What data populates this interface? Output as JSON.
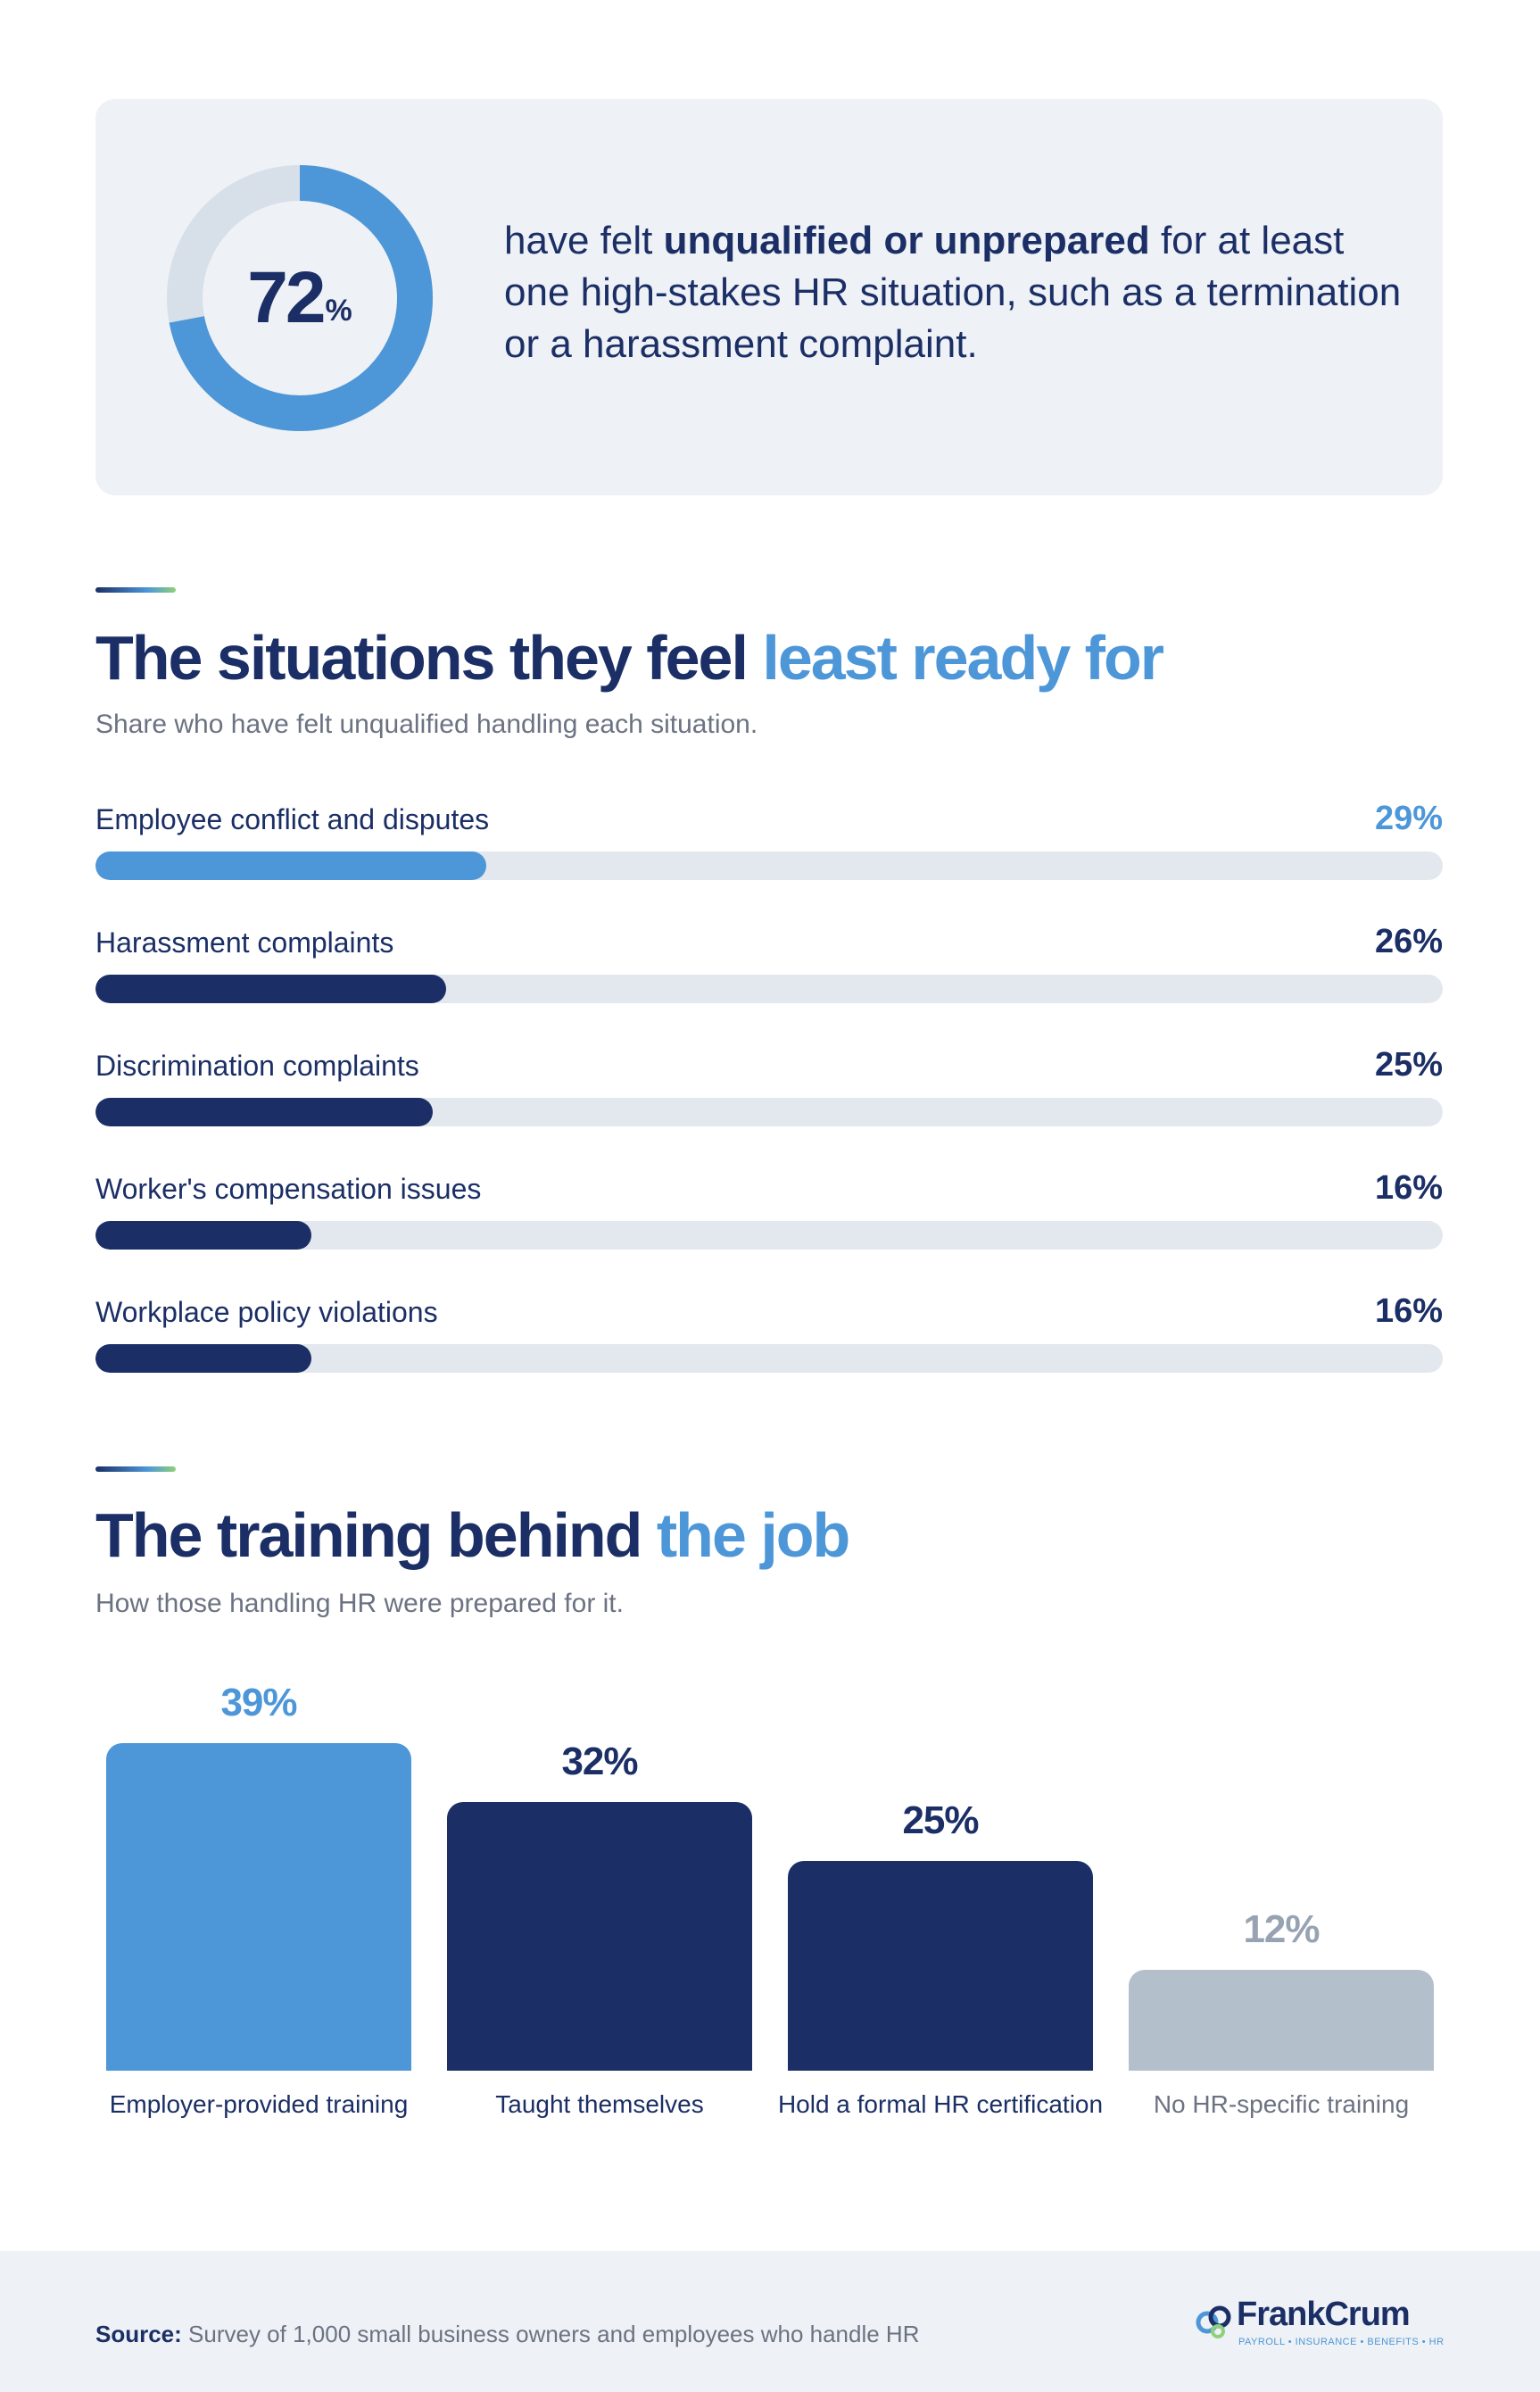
{
  "hero_stat": {
    "value": 72,
    "value_text": "72",
    "unit": "%",
    "text_before": "have felt ",
    "text_bold": "unqualified or unprepared",
    "text_after": " for at least one high-stakes HR situation, such as a termination or a harassment complaint.",
    "colors": {
      "fill": "#4d97d8",
      "track": "#d7dfe9"
    }
  },
  "section_situations": {
    "title_main": "The situations they feel ",
    "title_highlight": "least ready for",
    "subtitle": "Share who have felt unqualified handling each situation."
  },
  "section_training": {
    "title_main": "The training behind ",
    "title_highlight": "the job",
    "subtitle": "How those handling HR were prepared for it."
  },
  "chart_data": [
    {
      "type": "bar",
      "orientation": "horizontal",
      "categories": [
        "Employee conflict and disputes",
        "Harassment complaints",
        "Discrimination complaints",
        "Worker's compensation issues",
        "Workplace policy violations"
      ],
      "values": [
        29,
        26,
        25,
        16,
        16
      ],
      "value_labels": [
        "29%",
        "26%",
        "25%",
        "16%",
        "16%"
      ],
      "colors": [
        "#4d97d8",
        "#1b2f66",
        "#1b2f66",
        "#1b2f66",
        "#1b2f66"
      ],
      "xlim": [
        0,
        100
      ]
    },
    {
      "type": "bar",
      "orientation": "vertical",
      "categories": [
        "Employer-provided training",
        "Taught themselves",
        "Hold a formal HR certification",
        "No HR-specific training"
      ],
      "values": [
        39,
        32,
        25,
        12
      ],
      "value_labels": [
        "39%",
        "32%",
        "25%",
        "12%"
      ],
      "colors": [
        "#4d97d8",
        "#1b2f66",
        "#1b2f66",
        "#b4bfcc"
      ],
      "label_colors": [
        "#1b2f66",
        "#1b2f66",
        "#1b2f66",
        "#6b7282"
      ],
      "value_colors": [
        "#4d97d8",
        "#1b2f66",
        "#1b2f66",
        "#97a3b3"
      ]
    }
  ],
  "footer": {
    "source_label": "Source:",
    "source_text": " Survey of 1,000 small business owners and employees who handle HR",
    "logo_word_a": "Frank",
    "logo_word_b": "Crum",
    "logo_tagline": "PAYROLL • INSURANCE • BENEFITS • HR"
  }
}
